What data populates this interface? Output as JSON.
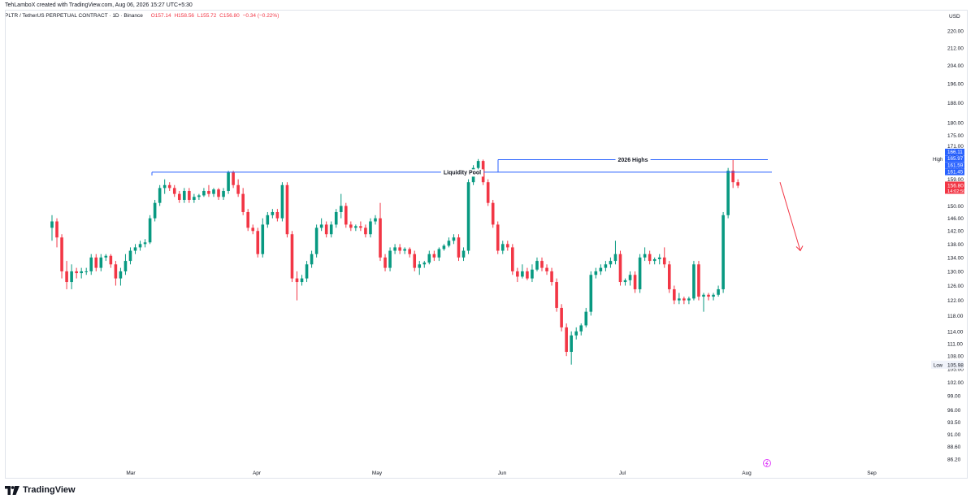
{
  "header": {
    "credit": "TehLamboX created with TradingView.com, Aug 06, 2026 15:27 UTC+5:30",
    "symbol": "PLTR / TetherUS PERPETUAL CONTRACT · 1D · Binance",
    "open": "O157.14",
    "high": "H158.56",
    "low": "L155.72",
    "close": "C156.80",
    "change": "−0.34 (−0.22%)",
    "currency": "USD"
  },
  "brand": {
    "name": "TradingView"
  },
  "colors": {
    "up": "#089981",
    "down": "#f23645",
    "level": "#2962ff",
    "axis_text": "#131722"
  },
  "price_axis": {
    "ticks": [
      "220.00",
      "212.00",
      "204.00",
      "196.00",
      "188.00",
      "180.00",
      "175.00",
      "171.00",
      "167.00",
      "163.00",
      "159.00",
      "155.00",
      "150.00",
      "146.00",
      "142.00",
      "138.00",
      "134.00",
      "130.00",
      "126.00",
      "122.00",
      "118.00",
      "114.00",
      "111.00",
      "108.00",
      "105.00",
      "102.00",
      "99.00",
      "96.00",
      "93.50",
      "91.00",
      "88.60",
      "86.20"
    ],
    "high_label": "High",
    "high_value": "166.21",
    "low_label": "Low",
    "low_value": "105.98",
    "price_tags": [
      {
        "value": "166.11",
        "color": "#2962ff"
      },
      {
        "value": "165.97",
        "color": "#2962ff"
      },
      {
        "value": "161.59",
        "color": "#2962ff"
      },
      {
        "value": "161.45",
        "color": "#2962ff"
      }
    ],
    "last_price": {
      "value": "156.80",
      "countdown": "14:02:50",
      "color": "#f23645"
    }
  },
  "chart_data": {
    "type": "candlestick",
    "title": "PLTR / TetherUS PERPETUAL CONTRACT · 1D · Binance",
    "x_axis": {
      "ticks": [
        "Mar",
        "Apr",
        "May",
        "Jun",
        "Jul",
        "Aug",
        "Sep"
      ]
    },
    "ylim": [
      85,
      225
    ],
    "scale": "log",
    "grid": false,
    "annotations": [
      {
        "label": "2026 Highs",
        "price": 165.97
      },
      {
        "label": "Liquidity Pool",
        "price": 161.5
      }
    ],
    "forecast_arrow": {
      "from": 158,
      "to": 136,
      "color": "#f23645"
    },
    "candles": [
      {
        "o": 143,
        "h": 147,
        "l": 139,
        "c": 145
      },
      {
        "o": 145,
        "h": 146,
        "l": 137,
        "c": 140
      },
      {
        "o": 140,
        "h": 141,
        "l": 128,
        "c": 130
      },
      {
        "o": 130,
        "h": 133,
        "l": 125,
        "c": 127
      },
      {
        "o": 127,
        "h": 132,
        "l": 125,
        "c": 130
      },
      {
        "o": 130,
        "h": 131,
        "l": 128,
        "c": 129.5
      },
      {
        "o": 129.5,
        "h": 131,
        "l": 128,
        "c": 130
      },
      {
        "o": 130,
        "h": 131,
        "l": 129,
        "c": 130
      },
      {
        "o": 130,
        "h": 135,
        "l": 129,
        "c": 134
      },
      {
        "o": 134,
        "h": 135,
        "l": 130,
        "c": 131
      },
      {
        "o": 131,
        "h": 135,
        "l": 130,
        "c": 134
      },
      {
        "o": 134,
        "h": 135,
        "l": 133,
        "c": 134.5
      },
      {
        "o": 134.5,
        "h": 135,
        "l": 131,
        "c": 132
      },
      {
        "o": 132,
        "h": 133,
        "l": 126,
        "c": 128
      },
      {
        "o": 128,
        "h": 131,
        "l": 126,
        "c": 130
      },
      {
        "o": 130,
        "h": 135,
        "l": 129,
        "c": 133
      },
      {
        "o": 133,
        "h": 137,
        "l": 132,
        "c": 136
      },
      {
        "o": 136,
        "h": 138,
        "l": 135,
        "c": 137
      },
      {
        "o": 137,
        "h": 139,
        "l": 136,
        "c": 138
      },
      {
        "o": 138,
        "h": 139.5,
        "l": 137,
        "c": 138.5
      },
      {
        "o": 138.5,
        "h": 147,
        "l": 138,
        "c": 146
      },
      {
        "o": 146,
        "h": 152,
        "l": 145,
        "c": 151
      },
      {
        "o": 151,
        "h": 157,
        "l": 150,
        "c": 156
      },
      {
        "o": 156,
        "h": 159,
        "l": 154,
        "c": 157
      },
      {
        "o": 157,
        "h": 158,
        "l": 155,
        "c": 156
      },
      {
        "o": 156,
        "h": 157,
        "l": 153,
        "c": 154
      },
      {
        "o": 154,
        "h": 155,
        "l": 151,
        "c": 152
      },
      {
        "o": 152,
        "h": 156,
        "l": 151,
        "c": 155
      },
      {
        "o": 155,
        "h": 156,
        "l": 151,
        "c": 152
      },
      {
        "o": 152,
        "h": 154,
        "l": 151,
        "c": 153
      },
      {
        "o": 153,
        "h": 154,
        "l": 152,
        "c": 153.5
      },
      {
        "o": 153.5,
        "h": 156,
        "l": 153,
        "c": 155
      },
      {
        "o": 155,
        "h": 157,
        "l": 153,
        "c": 154
      },
      {
        "o": 154,
        "h": 156,
        "l": 153,
        "c": 155.5
      },
      {
        "o": 155.5,
        "h": 156,
        "l": 152,
        "c": 153
      },
      {
        "o": 153,
        "h": 156,
        "l": 152,
        "c": 155
      },
      {
        "o": 155,
        "h": 162,
        "l": 154,
        "c": 161.5
      },
      {
        "o": 161.5,
        "h": 162,
        "l": 156,
        "c": 157
      },
      {
        "o": 157,
        "h": 159,
        "l": 153,
        "c": 154
      },
      {
        "o": 154,
        "h": 156,
        "l": 147,
        "c": 148
      },
      {
        "o": 148,
        "h": 149,
        "l": 142,
        "c": 143
      },
      {
        "o": 143,
        "h": 144,
        "l": 141,
        "c": 142
      },
      {
        "o": 142,
        "h": 143,
        "l": 134,
        "c": 135
      },
      {
        "o": 135,
        "h": 146,
        "l": 134,
        "c": 144
      },
      {
        "o": 144,
        "h": 148,
        "l": 143,
        "c": 147
      },
      {
        "o": 147,
        "h": 149,
        "l": 146,
        "c": 148
      },
      {
        "o": 148,
        "h": 149,
        "l": 145,
        "c": 146
      },
      {
        "o": 146,
        "h": 158,
        "l": 145,
        "c": 157
      },
      {
        "o": 157,
        "h": 158,
        "l": 140,
        "c": 141
      },
      {
        "o": 141,
        "h": 142,
        "l": 127,
        "c": 128
      },
      {
        "o": 128,
        "h": 130,
        "l": 122,
        "c": 127
      },
      {
        "o": 127,
        "h": 129,
        "l": 126,
        "c": 128
      },
      {
        "o": 128,
        "h": 133,
        "l": 127,
        "c": 132
      },
      {
        "o": 132,
        "h": 136,
        "l": 131,
        "c": 135
      },
      {
        "o": 135,
        "h": 144,
        "l": 134,
        "c": 143
      },
      {
        "o": 143,
        "h": 146,
        "l": 142,
        "c": 144
      },
      {
        "o": 144,
        "h": 145,
        "l": 140,
        "c": 141
      },
      {
        "o": 141,
        "h": 145,
        "l": 140,
        "c": 144
      },
      {
        "o": 144,
        "h": 149,
        "l": 143,
        "c": 148
      },
      {
        "o": 148,
        "h": 154,
        "l": 146,
        "c": 150
      },
      {
        "o": 150,
        "h": 151,
        "l": 143,
        "c": 144
      },
      {
        "o": 144,
        "h": 145,
        "l": 142,
        "c": 143
      },
      {
        "o": 143,
        "h": 144,
        "l": 142,
        "c": 143.5
      },
      {
        "o": 143.5,
        "h": 145,
        "l": 142,
        "c": 143
      },
      {
        "o": 143,
        "h": 144,
        "l": 140,
        "c": 141
      },
      {
        "o": 141,
        "h": 146,
        "l": 140,
        "c": 145
      },
      {
        "o": 145,
        "h": 147,
        "l": 144,
        "c": 146
      },
      {
        "o": 146,
        "h": 151,
        "l": 133,
        "c": 134
      },
      {
        "o": 134,
        "h": 135,
        "l": 130,
        "c": 131
      },
      {
        "o": 131,
        "h": 137,
        "l": 130,
        "c": 136
      },
      {
        "o": 136,
        "h": 138,
        "l": 135,
        "c": 137
      },
      {
        "o": 137,
        "h": 138,
        "l": 135,
        "c": 136
      },
      {
        "o": 136,
        "h": 137,
        "l": 135,
        "c": 136.5
      },
      {
        "o": 136.5,
        "h": 137,
        "l": 134,
        "c": 135
      },
      {
        "o": 135,
        "h": 136,
        "l": 130,
        "c": 131
      },
      {
        "o": 131,
        "h": 133,
        "l": 129,
        "c": 132
      },
      {
        "o": 132,
        "h": 133,
        "l": 131,
        "c": 132.5
      },
      {
        "o": 132.5,
        "h": 136,
        "l": 132,
        "c": 135
      },
      {
        "o": 135,
        "h": 136,
        "l": 133,
        "c": 134
      },
      {
        "o": 134,
        "h": 137,
        "l": 133,
        "c": 136.5
      },
      {
        "o": 136.5,
        "h": 138,
        "l": 136,
        "c": 137.5
      },
      {
        "o": 137.5,
        "h": 140,
        "l": 137,
        "c": 139
      },
      {
        "o": 139,
        "h": 141,
        "l": 138,
        "c": 140
      },
      {
        "o": 140,
        "h": 141,
        "l": 133,
        "c": 134
      },
      {
        "o": 134,
        "h": 137,
        "l": 133,
        "c": 136
      },
      {
        "o": 136,
        "h": 159,
        "l": 135,
        "c": 158
      },
      {
        "o": 158,
        "h": 164,
        "l": 157,
        "c": 163
      },
      {
        "o": 163,
        "h": 166.2,
        "l": 161,
        "c": 165.5
      },
      {
        "o": 165.5,
        "h": 166,
        "l": 157,
        "c": 158
      },
      {
        "o": 158,
        "h": 159,
        "l": 150,
        "c": 151
      },
      {
        "o": 151,
        "h": 152,
        "l": 143,
        "c": 144
      },
      {
        "o": 144,
        "h": 145,
        "l": 135,
        "c": 136
      },
      {
        "o": 136,
        "h": 139,
        "l": 135,
        "c": 138
      },
      {
        "o": 138,
        "h": 139,
        "l": 136,
        "c": 137
      },
      {
        "o": 137,
        "h": 138,
        "l": 129,
        "c": 130
      },
      {
        "o": 130,
        "h": 131,
        "l": 127,
        "c": 128.5
      },
      {
        "o": 128.5,
        "h": 132,
        "l": 128,
        "c": 130
      },
      {
        "o": 130,
        "h": 131,
        "l": 127.5,
        "c": 128
      },
      {
        "o": 128,
        "h": 132,
        "l": 127,
        "c": 130.5
      },
      {
        "o": 130.5,
        "h": 134,
        "l": 130,
        "c": 133
      },
      {
        "o": 133,
        "h": 134,
        "l": 130,
        "c": 131
      },
      {
        "o": 131,
        "h": 132,
        "l": 129,
        "c": 130
      },
      {
        "o": 130,
        "h": 131,
        "l": 126,
        "c": 127
      },
      {
        "o": 127,
        "h": 128,
        "l": 119,
        "c": 120
      },
      {
        "o": 120,
        "h": 121,
        "l": 114,
        "c": 115
      },
      {
        "o": 115,
        "h": 116,
        "l": 108,
        "c": 109
      },
      {
        "o": 109,
        "h": 114,
        "l": 106,
        "c": 113
      },
      {
        "o": 113,
        "h": 115,
        "l": 112,
        "c": 114
      },
      {
        "o": 114,
        "h": 116,
        "l": 113,
        "c": 115.5
      },
      {
        "o": 115.5,
        "h": 120,
        "l": 115,
        "c": 119
      },
      {
        "o": 119,
        "h": 130,
        "l": 118,
        "c": 129
      },
      {
        "o": 129,
        "h": 131,
        "l": 128,
        "c": 130
      },
      {
        "o": 130,
        "h": 132,
        "l": 129,
        "c": 131
      },
      {
        "o": 131,
        "h": 133,
        "l": 130,
        "c": 132
      },
      {
        "o": 132,
        "h": 134,
        "l": 131,
        "c": 133
      },
      {
        "o": 133,
        "h": 139,
        "l": 132,
        "c": 135
      },
      {
        "o": 135,
        "h": 136,
        "l": 126,
        "c": 127
      },
      {
        "o": 127,
        "h": 128,
        "l": 126,
        "c": 127.5
      },
      {
        "o": 127.5,
        "h": 130,
        "l": 126,
        "c": 129
      },
      {
        "o": 129,
        "h": 130,
        "l": 124,
        "c": 125
      },
      {
        "o": 125,
        "h": 135,
        "l": 124,
        "c": 134
      },
      {
        "o": 134,
        "h": 137,
        "l": 133,
        "c": 135
      },
      {
        "o": 135,
        "h": 136,
        "l": 132,
        "c": 133
      },
      {
        "o": 133,
        "h": 134,
        "l": 132,
        "c": 133.5
      },
      {
        "o": 133.5,
        "h": 135,
        "l": 132,
        "c": 134
      },
      {
        "o": 134,
        "h": 137,
        "l": 131,
        "c": 132
      },
      {
        "o": 132,
        "h": 133,
        "l": 124,
        "c": 125
      },
      {
        "o": 125,
        "h": 126,
        "l": 121,
        "c": 122
      },
      {
        "o": 122,
        "h": 124,
        "l": 121,
        "c": 122.5
      },
      {
        "o": 122.5,
        "h": 123,
        "l": 121,
        "c": 122
      },
      {
        "o": 122,
        "h": 123,
        "l": 121,
        "c": 122.5
      },
      {
        "o": 122.5,
        "h": 133,
        "l": 122,
        "c": 132
      },
      {
        "o": 132,
        "h": 133,
        "l": 122,
        "c": 123
      },
      {
        "o": 123,
        "h": 124,
        "l": 119,
        "c": 123.5
      },
      {
        "o": 123.5,
        "h": 124,
        "l": 122,
        "c": 123
      },
      {
        "o": 123,
        "h": 124,
        "l": 122,
        "c": 123.5
      },
      {
        "o": 123.5,
        "h": 126,
        "l": 123,
        "c": 125
      },
      {
        "o": 125,
        "h": 148,
        "l": 124,
        "c": 147
      },
      {
        "o": 147,
        "h": 163,
        "l": 146,
        "c": 162
      },
      {
        "o": 162,
        "h": 166,
        "l": 156,
        "c": 158
      },
      {
        "o": 158,
        "h": 159,
        "l": 156,
        "c": 156.8
      }
    ]
  }
}
